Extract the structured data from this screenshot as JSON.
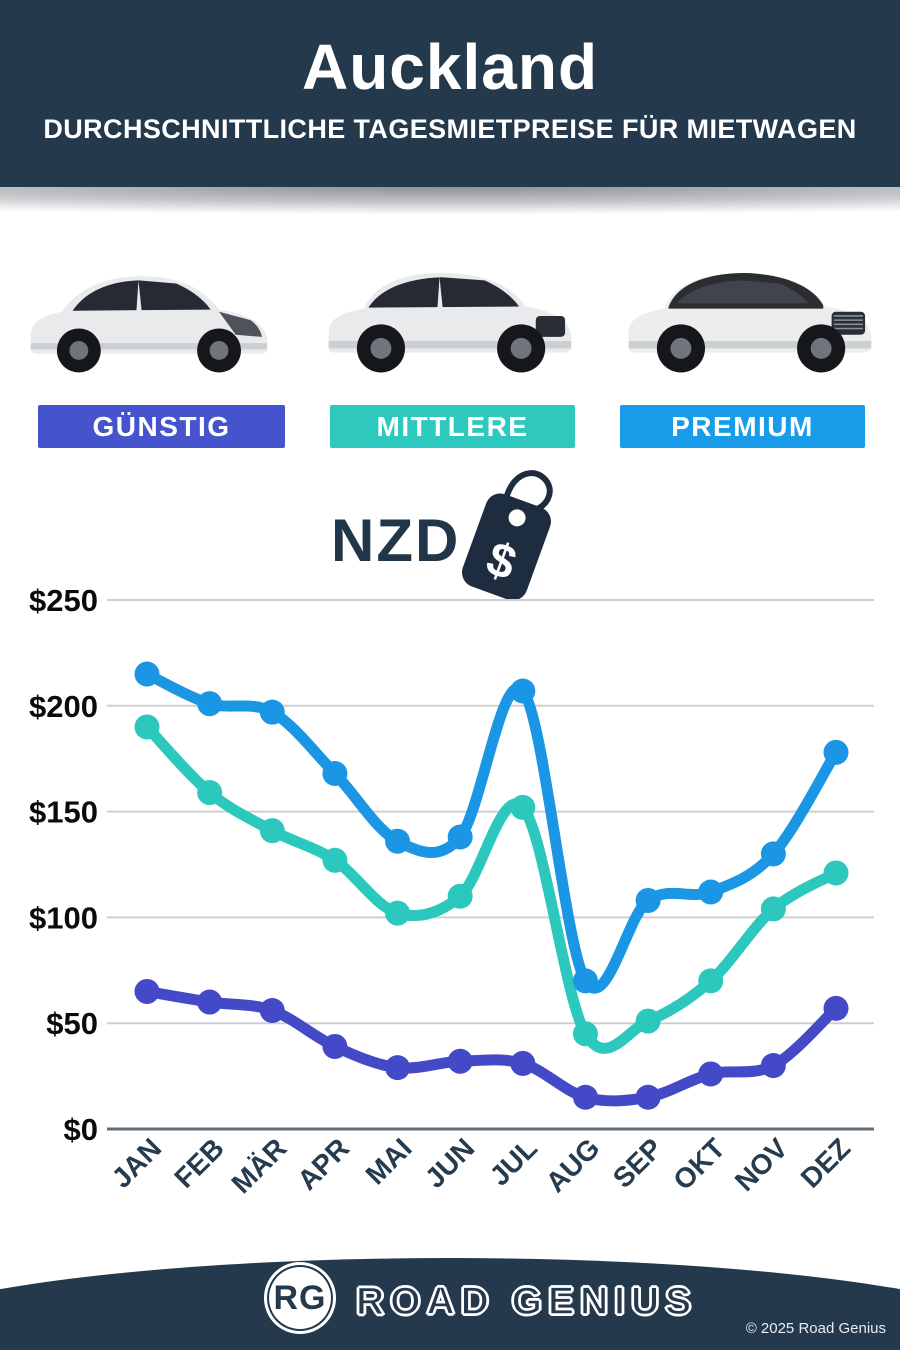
{
  "header": {
    "title": "Auckland",
    "subtitle": "DURCHSCHNITTLICHE TAGESMIETPREISE FÜR MIETWAGEN"
  },
  "theme": {
    "navy": "#24394b",
    "background": "#ffffff"
  },
  "categories": [
    {
      "label": "GÜNSTIG",
      "color": "#4553cd"
    },
    {
      "label": "MITTLERE",
      "color": "#2ec8be"
    },
    {
      "label": "PREMIUM",
      "color": "#189be8"
    }
  ],
  "currency": {
    "label": "NZD",
    "tag_symbol": "$"
  },
  "chart_data": {
    "type": "line",
    "title": "",
    "categories": [
      "JAN",
      "FEB",
      "MÄR",
      "APR",
      "MAI",
      "JUN",
      "JUL",
      "AUG",
      "SEP",
      "OKT",
      "NOV",
      "DEZ"
    ],
    "y_ticks": [
      "$250",
      "$200",
      "$150",
      "$100",
      "$50",
      "$0"
    ],
    "ylim": [
      0,
      250
    ],
    "grid": true,
    "x_label_rotation": -45,
    "legend_position": "none",
    "series": [
      {
        "name": "PREMIUM",
        "color": "#1b96e4",
        "values": [
          215,
          201,
          197,
          168,
          136,
          138,
          207,
          70,
          108,
          112,
          130,
          178
        ]
      },
      {
        "name": "MITTLERE",
        "color": "#2cc8bd",
        "values": [
          190,
          159,
          141,
          127,
          102,
          110,
          152,
          45,
          51,
          70,
          104,
          121
        ]
      },
      {
        "name": "GÜNSTIG",
        "color": "#4449c8",
        "values": [
          65,
          60,
          56,
          39,
          29,
          32,
          31,
          15,
          15,
          26,
          30,
          57
        ]
      }
    ]
  },
  "footer": {
    "logo_initials": "RG",
    "brand": "ROAD GENIUS",
    "copyright": "© 2025 Road Genius"
  }
}
